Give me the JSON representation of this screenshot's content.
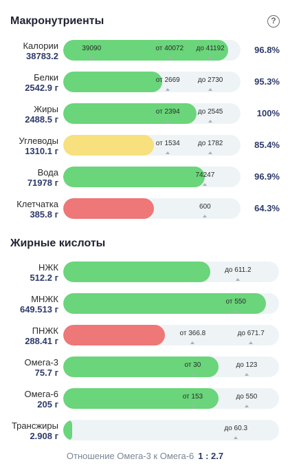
{
  "macros": {
    "title": "Макронутриенты",
    "help_icon": "?",
    "rows": [
      {
        "name": "Калории",
        "amount": "38783.2",
        "fill": 0.93,
        "color": "green",
        "marks": [
          {
            "label": "39090",
            "at": 0.16
          },
          {
            "label": "от 40072",
            "at": 0.6
          },
          {
            "label": "до 41192",
            "at": 0.83
          }
        ],
        "pct": "96.8%"
      },
      {
        "name": "Белки",
        "amount": "2542.9 г",
        "fill": 0.56,
        "color": "green",
        "marks": [
          {
            "label": "от 2669",
            "at": 0.59
          },
          {
            "label": "до 2730",
            "at": 0.83
          }
        ],
        "pct": "95.3%"
      },
      {
        "name": "Жиры",
        "amount": "2488.5 г",
        "fill": 0.75,
        "color": "green",
        "marks": [
          {
            "label": "от 2394",
            "at": 0.59
          },
          {
            "label": "до 2545",
            "at": 0.83
          }
        ],
        "pct": "100%"
      },
      {
        "name": "Углеводы",
        "amount": "1310.1 г",
        "fill": 0.51,
        "color": "yellow",
        "marks": [
          {
            "label": "от 1534",
            "at": 0.59
          },
          {
            "label": "до 1782",
            "at": 0.83
          }
        ],
        "pct": "85.4%"
      },
      {
        "name": "Вода",
        "amount": "71978 г",
        "fill": 0.8,
        "color": "green",
        "marks": [
          {
            "label": "74247",
            "at": 0.8
          }
        ],
        "pct": "96.9%"
      },
      {
        "name": "Клетчатка",
        "amount": "385.8 г",
        "fill": 0.51,
        "color": "red",
        "marks": [
          {
            "label": "600",
            "at": 0.8
          }
        ],
        "pct": "64.3%"
      }
    ]
  },
  "fats": {
    "title": "Жирные кислоты",
    "rows": [
      {
        "name": "НЖК",
        "amount": "512.2 г",
        "fill": 0.68,
        "color": "green",
        "marks": [
          {
            "label": "до 611.2",
            "at": 0.81
          }
        ]
      },
      {
        "name": "МНЖК",
        "amount": "649.513 г",
        "fill": 0.94,
        "color": "green",
        "marks": [
          {
            "label": "от 550",
            "at": 0.8
          }
        ]
      },
      {
        "name": "ПНЖК",
        "amount": "288.41 г",
        "fill": 0.47,
        "color": "red",
        "marks": [
          {
            "label": "от 366.8",
            "at": 0.6
          },
          {
            "label": "до 671.7",
            "at": 0.87
          }
        ]
      },
      {
        "name": "Омега-3",
        "amount": "75.7 г",
        "fill": 0.72,
        "color": "green",
        "marks": [
          {
            "label": "от 30",
            "at": 0.6
          },
          {
            "label": "до 123",
            "at": 0.85
          }
        ]
      },
      {
        "name": "Омега-6",
        "amount": "205 г",
        "fill": 0.72,
        "color": "green",
        "marks": [
          {
            "label": "от 153",
            "at": 0.6
          },
          {
            "label": "до 550",
            "at": 0.85
          }
        ]
      },
      {
        "name": "Трансжиры",
        "amount": "2.908 г",
        "fill": 0.04,
        "color": "green",
        "marks": [
          {
            "label": "до 60.3",
            "at": 0.8
          }
        ]
      }
    ]
  },
  "ratio": {
    "label": "Отношение Омега-3 к Омега-6",
    "value": "1 : 2.7"
  },
  "colors": {
    "green": "#6ad57a",
    "yellow": "#f7e07d",
    "red": "#ee7777",
    "track": "#eef3f6",
    "accent": "#2d3a6b"
  }
}
